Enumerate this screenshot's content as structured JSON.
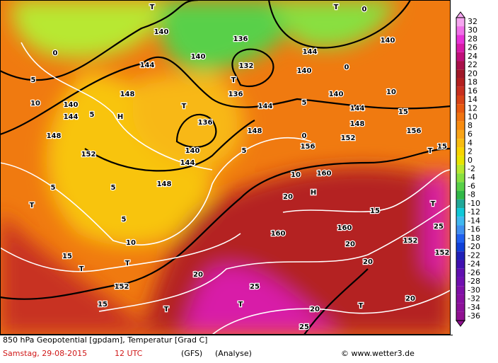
{
  "map": {
    "labels": [
      "144",
      "144",
      "144",
      "144",
      "144",
      "144",
      "140",
      "140",
      "140",
      "140",
      "140",
      "140",
      "140",
      "148",
      "148",
      "148",
      "148",
      "148",
      "152",
      "152",
      "152",
      "152",
      "152",
      "156",
      "156",
      "160",
      "160",
      "160",
      "136",
      "136",
      "136",
      "132",
      "0",
      "0",
      "0",
      "0",
      "5",
      "5",
      "5",
      "5",
      "5",
      "5",
      "5",
      "10",
      "10",
      "10",
      "10",
      "15",
      "15",
      "15",
      "15",
      "15",
      "20",
      "20",
      "20",
      "20",
      "20",
      "20",
      "25",
      "25",
      "25",
      "T",
      "T",
      "T",
      "T",
      "T",
      "T",
      "T",
      "T",
      "T",
      "T",
      "T",
      "T",
      "H",
      "H"
    ]
  },
  "legend": {
    "levels": [
      32,
      30,
      28,
      26,
      24,
      22,
      20,
      18,
      16,
      14,
      12,
      10,
      8,
      6,
      4,
      2,
      0,
      -2,
      -4,
      -6,
      -8,
      -10,
      -12,
      -14,
      -16,
      -18,
      -20,
      -22,
      -24,
      -26,
      -28,
      -30,
      -32,
      -34,
      -36
    ],
    "colors": [
      "#f6a6f0",
      "#f070e8",
      "#e832d8",
      "#d81aa8",
      "#c0107a",
      "#a8104a",
      "#a01828",
      "#b42020",
      "#c83020",
      "#d84418",
      "#e85a10",
      "#f07410",
      "#f88c10",
      "#f8a418",
      "#f8bc10",
      "#f8d400",
      "#e8e400",
      "#b8e830",
      "#88e040",
      "#58d048",
      "#30b848",
      "#20a898",
      "#10c8d8",
      "#40b8f0",
      "#4090f0",
      "#2060f0",
      "#1040d8",
      "#2020b8",
      "#4010b0",
      "#6010b0",
      "#7010b0",
      "#8010a8",
      "#8810a0",
      "#8c1098",
      "#901090"
    ]
  },
  "footer": {
    "title": "850 hPa Geopotential [gpdam], Temperatur [Grad C]",
    "date": "Samstag, 29-08-2015",
    "time": "12 UTC",
    "model": "(GFS)",
    "run": "(Analyse)",
    "credit": "© www.wetter3.de"
  }
}
